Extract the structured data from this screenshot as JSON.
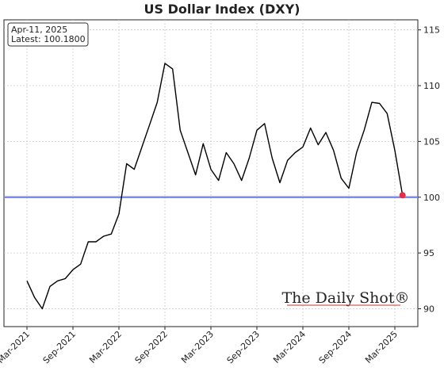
{
  "chart_data": {
    "type": "line",
    "title": "US Dollar Index (DXY)",
    "x": [
      "2021-03",
      "2021-04",
      "2021-05",
      "2021-06",
      "2021-07",
      "2021-08",
      "2021-09",
      "2021-10",
      "2021-11",
      "2021-12",
      "2022-01",
      "2022-02",
      "2022-03",
      "2022-04",
      "2022-05",
      "2022-06",
      "2022-07",
      "2022-08",
      "2022-09",
      "2022-10",
      "2022-11",
      "2022-12",
      "2023-01",
      "2023-02",
      "2023-03",
      "2023-04",
      "2023-05",
      "2023-06",
      "2023-07",
      "2023-08",
      "2023-09",
      "2023-10",
      "2023-11",
      "2023-12",
      "2024-01",
      "2024-02",
      "2024-03",
      "2024-04",
      "2024-05",
      "2024-06",
      "2024-07",
      "2024-08",
      "2024-09",
      "2024-10",
      "2024-11",
      "2024-12",
      "2025-01",
      "2025-02",
      "2025-03",
      "2025-04"
    ],
    "values": [
      92.5,
      91.0,
      90.0,
      92.0,
      92.5,
      92.7,
      93.5,
      94.0,
      96.0,
      96.0,
      96.5,
      96.7,
      98.5,
      103.0,
      102.5,
      104.5,
      106.5,
      108.5,
      112.0,
      111.5,
      106.0,
      104.0,
      102.0,
      104.8,
      102.5,
      101.5,
      104.0,
      103.0,
      101.5,
      103.5,
      106.0,
      106.6,
      103.5,
      101.3,
      103.3,
      104.0,
      104.5,
      106.2,
      104.7,
      105.8,
      104.2,
      101.7,
      100.8,
      104.0,
      106.0,
      108.5,
      108.4,
      107.5,
      104.2,
      100.18
    ],
    "color": "#000000",
    "reference_line": {
      "value": 100,
      "color": "#7b8cf0"
    },
    "last_point_color": "#e0304a",
    "annotation": [
      "Apr-11, 2025",
      "Latest: 100.1800"
    ],
    "watermark": "The Daily Shot®",
    "xlim": [
      "2020-12",
      "2025-06"
    ],
    "xticks": [
      {
        "value": "2021-03",
        "label": "Mar-2021"
      },
      {
        "value": "2021-09",
        "label": "Sep-2021"
      },
      {
        "value": "2022-03",
        "label": "Mar-2022"
      },
      {
        "value": "2022-09",
        "label": "Sep-2022"
      },
      {
        "value": "2023-03",
        "label": "Mar-2023"
      },
      {
        "value": "2023-09",
        "label": "Sep-2023"
      },
      {
        "value": "2024-03",
        "label": "Mar-2024"
      },
      {
        "value": "2024-09",
        "label": "Sep-2024"
      },
      {
        "value": "2025-03",
        "label": "Mar-2025"
      }
    ],
    "ylim": [
      88.4,
      115.9
    ],
    "yticks": [
      90,
      95,
      100,
      105,
      110,
      115
    ],
    "grid": true
  }
}
